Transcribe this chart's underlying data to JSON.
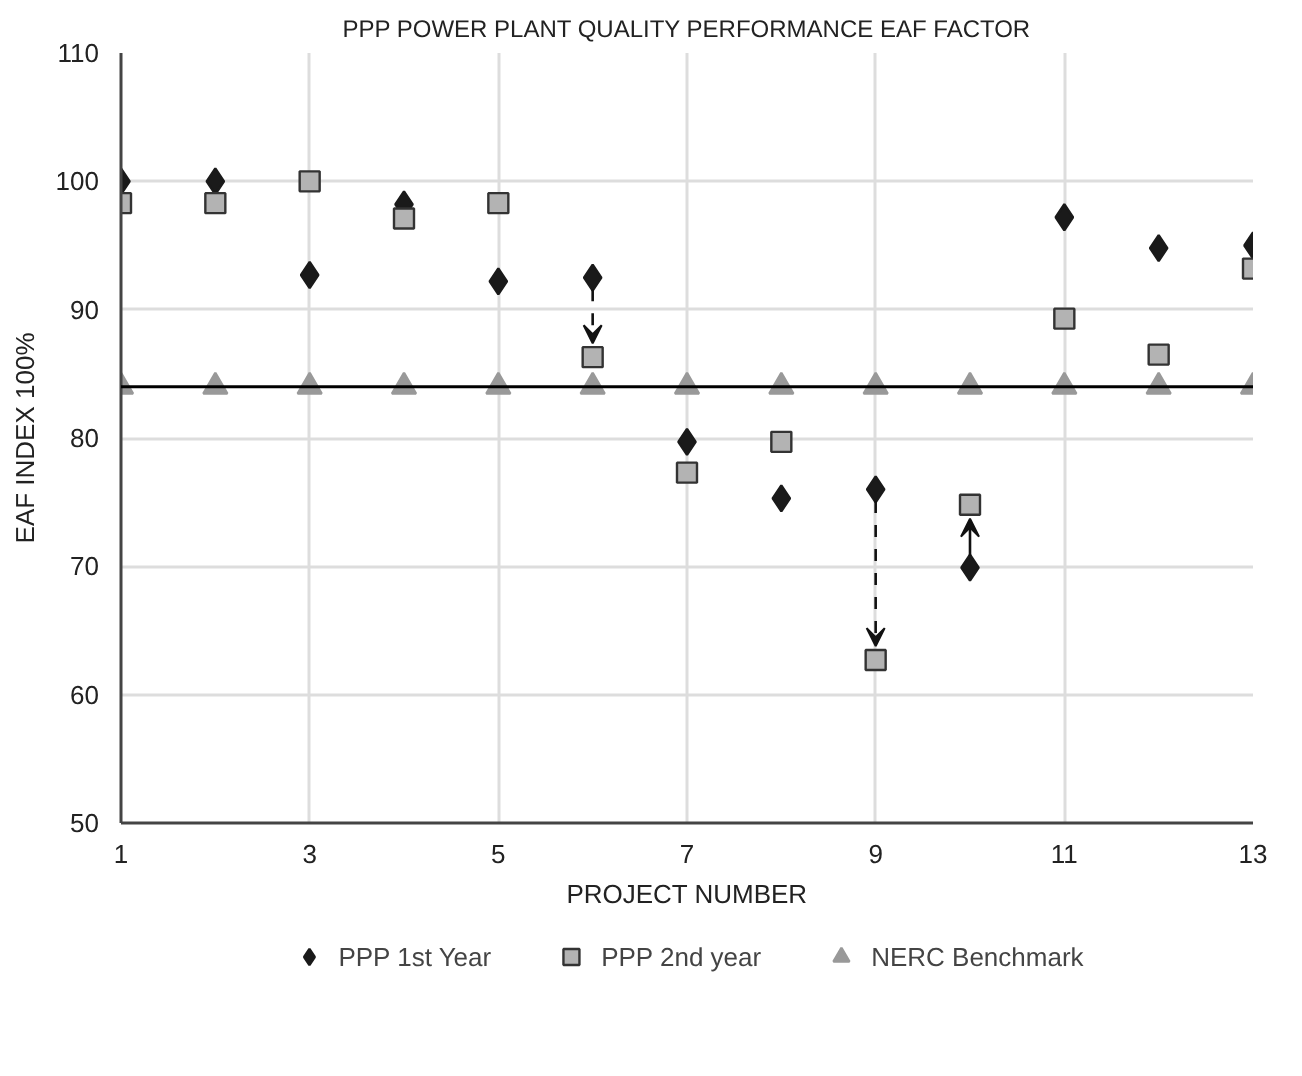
{
  "chart_data": {
    "type": "scatter",
    "title": "PPP POWER PLANT QUALITY PERFORMANCE EAF FACTOR",
    "xlabel": "PROJECT NUMBER",
    "ylabel": "EAF INDEX 100%",
    "x": [
      1,
      2,
      3,
      4,
      5,
      6,
      7,
      8,
      9,
      10,
      11,
      12,
      13
    ],
    "series": [
      {
        "name": "PPP 1st Year",
        "color": "#1a1a1a",
        "marker": "diamond",
        "values": [
          100,
          100,
          92.7,
          98.2,
          92.2,
          92.5,
          79.7,
          75.3,
          76.0,
          69.9,
          97.2,
          94.8,
          95.0
        ]
      },
      {
        "name": "PPP 2nd year",
        "color": "#b3b3b3",
        "marker": "square",
        "values": [
          98.3,
          98.3,
          100,
          97.1,
          98.3,
          86.3,
          77.3,
          79.7,
          62.7,
          74.8,
          89.3,
          86.5,
          93.2
        ]
      },
      {
        "name": "NERC Benchmark",
        "color": "#999999",
        "marker": "triangle",
        "values": [
          84,
          84,
          84,
          84,
          84,
          84,
          84,
          84,
          84,
          84,
          84,
          84,
          84
        ]
      }
    ],
    "ref_lines": [
      {
        "axis": "y",
        "value": 84,
        "color": "#000000",
        "line_style": "solid"
      }
    ],
    "xlim": [
      1,
      13
    ],
    "xticks": [
      1,
      3,
      5,
      7,
      9,
      11,
      13
    ],
    "ylim": [
      50,
      110
    ],
    "yticks": [
      50,
      60,
      70,
      80,
      90,
      100,
      110
    ],
    "grid": true,
    "legend": "bottom"
  }
}
